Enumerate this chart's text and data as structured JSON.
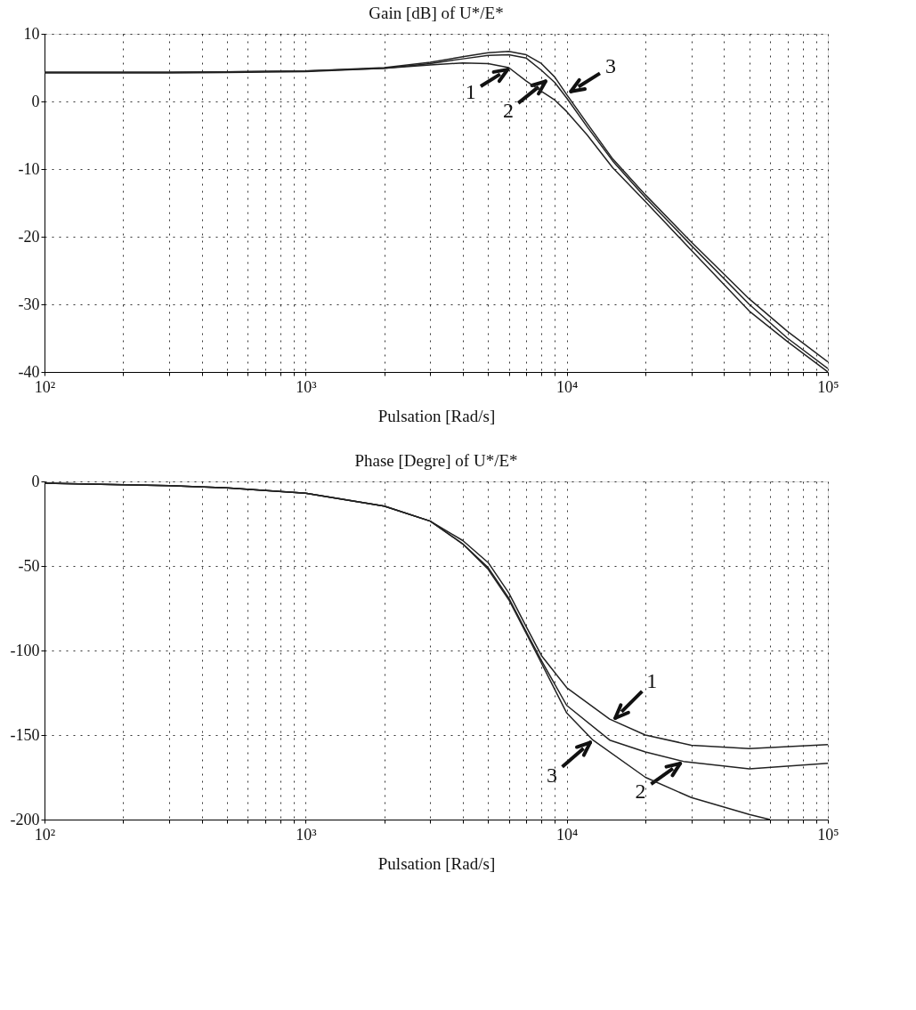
{
  "chart_data": [
    {
      "type": "line",
      "title": "Gain [dB] of U*/E*",
      "xlabel": "Pulsation [Rad/s]",
      "log": "x",
      "grid": true,
      "legend": false,
      "xlim": [
        100,
        100000
      ],
      "ylim": [
        -40,
        10
      ],
      "xticks": [
        {
          "value": 100,
          "label": "10²"
        },
        {
          "value": 200,
          "label": null
        },
        {
          "value": 300,
          "label": null
        },
        {
          "value": 400,
          "label": null
        },
        {
          "value": 500,
          "label": null
        },
        {
          "value": 600,
          "label": null
        },
        {
          "value": 700,
          "label": null
        },
        {
          "value": 800,
          "label": null
        },
        {
          "value": 900,
          "label": null
        },
        {
          "value": 1000,
          "label": "10³"
        },
        {
          "value": 2000,
          "label": null
        },
        {
          "value": 3000,
          "label": null
        },
        {
          "value": 4000,
          "label": null
        },
        {
          "value": 5000,
          "label": null
        },
        {
          "value": 6000,
          "label": null
        },
        {
          "value": 7000,
          "label": null
        },
        {
          "value": 8000,
          "label": null
        },
        {
          "value": 9000,
          "label": null
        },
        {
          "value": 10000,
          "label": "10⁴"
        },
        {
          "value": 20000,
          "label": null
        },
        {
          "value": 30000,
          "label": null
        },
        {
          "value": 40000,
          "label": null
        },
        {
          "value": 50000,
          "label": null
        },
        {
          "value": 60000,
          "label": null
        },
        {
          "value": 70000,
          "label": null
        },
        {
          "value": 80000,
          "label": null
        },
        {
          "value": 90000,
          "label": null
        },
        {
          "value": 100000,
          "label": "10⁵"
        }
      ],
      "yticks": [
        10,
        0,
        -10,
        -20,
        -30,
        -40
      ],
      "series": [
        {
          "color": "#222222",
          "x": [
            100,
            300,
            1000,
            2000,
            3000,
            4000,
            5000,
            6000,
            7000,
            8000,
            9000,
            10000,
            12000,
            15000,
            20000,
            30000,
            50000,
            70000,
            100000
          ],
          "values": [
            4.2,
            4.2,
            4.4,
            4.9,
            5.4,
            5.7,
            5.6,
            5.0,
            3.0,
            1.5,
            0.2,
            -1.5,
            -5,
            -9.8,
            -14.8,
            -22,
            -31,
            -35.5,
            -40
          ]
        },
        {
          "color": "#222222",
          "x": [
            100,
            300,
            1000,
            2000,
            3000,
            4000,
            5000,
            6000,
            7000,
            8000,
            9000,
            10000,
            12000,
            15000,
            20000,
            30000,
            50000,
            70000,
            100000
          ],
          "values": [
            4.3,
            4.3,
            4.5,
            4.9,
            5.6,
            6.3,
            6.8,
            6.9,
            6.4,
            4.6,
            2.8,
            0.5,
            -3.8,
            -8.8,
            -14.2,
            -21.3,
            -30,
            -35,
            -39.5
          ]
        },
        {
          "color": "#222222",
          "x": [
            100,
            300,
            1000,
            2000,
            3000,
            4000,
            5000,
            6000,
            7000,
            8000,
            9000,
            10000,
            12000,
            15000,
            20000,
            30000,
            50000,
            70000,
            100000
          ],
          "values": [
            4.3,
            4.3,
            4.5,
            5.0,
            5.8,
            6.6,
            7.2,
            7.4,
            6.9,
            5.6,
            3.6,
            1.0,
            -3.3,
            -8.5,
            -13.8,
            -20.8,
            -29.2,
            -34,
            -38.5
          ]
        }
      ],
      "annotations": [
        {
          "text": "1",
          "x": 6100,
          "y": 5.0
        },
        {
          "text": "2",
          "x": 8500,
          "y": 3.3
        },
        {
          "text": "3",
          "x": 10100,
          "y": 1.2
        }
      ]
    },
    {
      "type": "line",
      "title": "Phase [Degre] of U*/E*",
      "xlabel": "Pulsation [Rad/s]",
      "log": "x",
      "grid": true,
      "legend": false,
      "xlim": [
        100,
        100000
      ],
      "ylim": [
        -200,
        0
      ],
      "xticks": [
        {
          "value": 100,
          "label": "10²"
        },
        {
          "value": 200,
          "label": null
        },
        {
          "value": 300,
          "label": null
        },
        {
          "value": 400,
          "label": null
        },
        {
          "value": 500,
          "label": null
        },
        {
          "value": 600,
          "label": null
        },
        {
          "value": 700,
          "label": null
        },
        {
          "value": 800,
          "label": null
        },
        {
          "value": 900,
          "label": null
        },
        {
          "value": 1000,
          "label": "10³"
        },
        {
          "value": 2000,
          "label": null
        },
        {
          "value": 3000,
          "label": null
        },
        {
          "value": 4000,
          "label": null
        },
        {
          "value": 5000,
          "label": null
        },
        {
          "value": 6000,
          "label": null
        },
        {
          "value": 7000,
          "label": null
        },
        {
          "value": 8000,
          "label": null
        },
        {
          "value": 9000,
          "label": null
        },
        {
          "value": 10000,
          "label": "10⁴"
        },
        {
          "value": 20000,
          "label": null
        },
        {
          "value": 30000,
          "label": null
        },
        {
          "value": 40000,
          "label": null
        },
        {
          "value": 50000,
          "label": null
        },
        {
          "value": 60000,
          "label": null
        },
        {
          "value": 70000,
          "label": null
        },
        {
          "value": 80000,
          "label": null
        },
        {
          "value": 90000,
          "label": null
        },
        {
          "value": 100000,
          "label": "10⁵"
        }
      ],
      "yticks": [
        0,
        -50,
        -100,
        -150,
        -200
      ],
      "series": [
        {
          "color": "#222222",
          "x": [
            100,
            300,
            500,
            1000,
            2000,
            3000,
            4000,
            5000,
            6000,
            7000,
            8000,
            10000,
            14600,
            20000,
            30000,
            50000,
            100000
          ],
          "values": [
            -1,
            -2.5,
            -3.8,
            -7,
            -14.6,
            -23.5,
            -35,
            -48,
            -66,
            -86,
            -103,
            -122,
            -140.6,
            -150,
            -156,
            -158,
            -155.7
          ]
        },
        {
          "color": "#222222",
          "x": [
            100,
            300,
            500,
            1000,
            2000,
            3000,
            4000,
            5000,
            6000,
            7000,
            8000,
            10000,
            14600,
            20000,
            28000,
            50000,
            100000
          ],
          "values": [
            -1,
            -2.5,
            -3.8,
            -7,
            -14.6,
            -23.5,
            -37,
            -51,
            -69,
            -89,
            -106,
            -132.5,
            -153,
            -160,
            -165.6,
            -170,
            -166.7
          ]
        },
        {
          "color": "#222222",
          "x": [
            100,
            300,
            500,
            1000,
            2000,
            3000,
            4000,
            5000,
            6000,
            7000,
            8000,
            10000,
            12600,
            20000,
            30000,
            50000,
            60000
          ],
          "values": [
            -1,
            -2.5,
            -3.8,
            -7,
            -14.6,
            -23.5,
            -37,
            -52,
            -70,
            -90,
            -107.5,
            -137,
            -153,
            -175,
            -187,
            -197,
            -200
          ]
        }
      ],
      "annotations": [
        {
          "text": "1",
          "x": 15000,
          "y": -141.5
        },
        {
          "text": "2",
          "x": 27900,
          "y": -165.6
        },
        {
          "text": "3",
          "x": 12600,
          "y": -153
        }
      ]
    }
  ]
}
